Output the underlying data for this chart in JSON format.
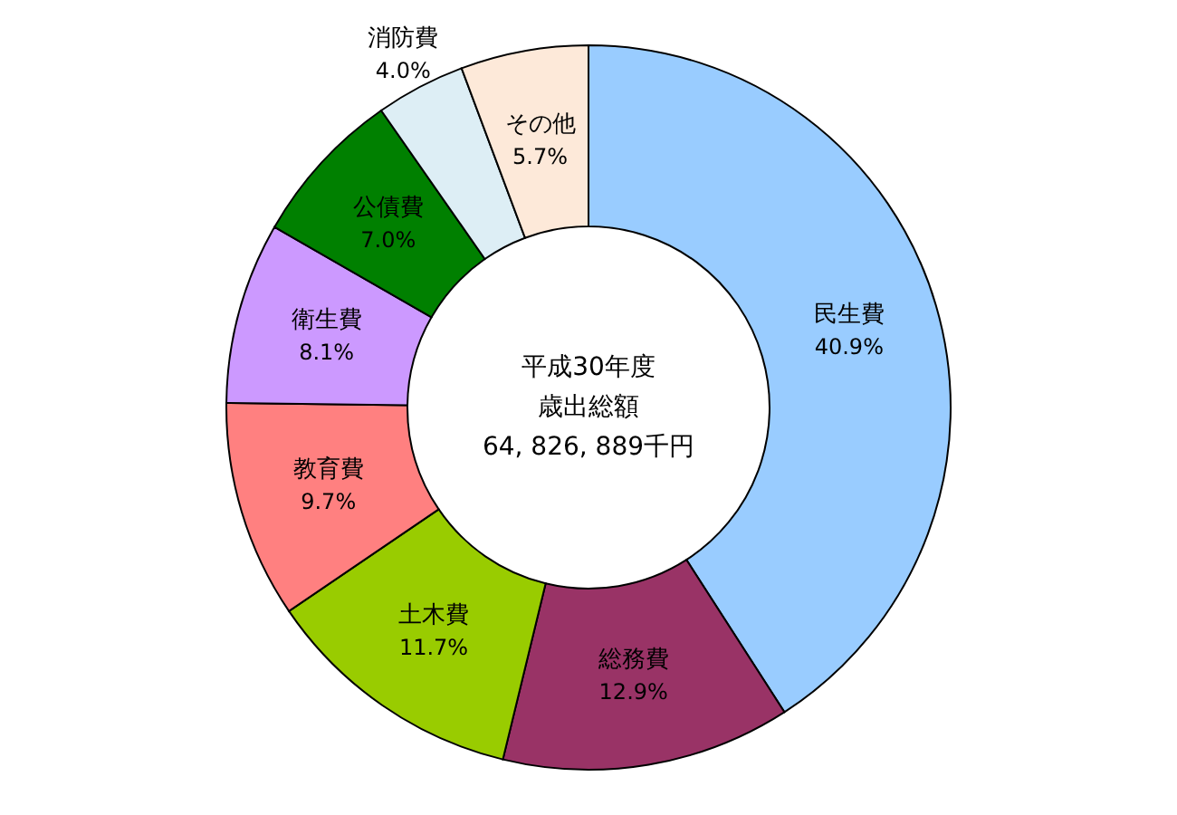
{
  "chart_data": {
    "type": "donut",
    "categories": [
      "民生費",
      "総務費",
      "土木費",
      "教育費",
      "衛生費",
      "公債費",
      "消防費",
      "その他"
    ],
    "values": [
      40.9,
      12.9,
      11.7,
      9.7,
      8.1,
      7.0,
      4.0,
      5.7
    ],
    "value_labels": [
      "40.9%",
      "12.9%",
      "11.7%",
      "9.7%",
      "8.1%",
      "7.0%",
      "4.0%",
      "5.7%"
    ],
    "colors": [
      "#99ccff",
      "#993366",
      "#99cc00",
      "#ff8080",
      "#cc99ff",
      "#008000",
      "#ddeef5",
      "#fde9d9"
    ],
    "annotations": [
      "平成30年度",
      "歳出総額",
      "64, 826, 889千円"
    ]
  }
}
